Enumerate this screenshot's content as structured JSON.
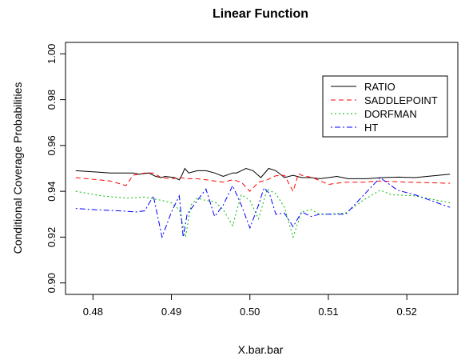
{
  "chart_data": {
    "type": "line",
    "title": "Linear Function",
    "xlabel": "X.bar.bar",
    "ylabel": "Conditional Coverage Probabilities",
    "xlim": [
      0.4765,
      0.5265
    ],
    "ylim": [
      0.895,
      1.005
    ],
    "xticks": [
      0.48,
      0.49,
      0.5,
      0.51,
      0.52
    ],
    "xtick_labels": [
      "0.48",
      "0.49",
      "0.50",
      "0.51",
      "0.52"
    ],
    "yticks": [
      0.9,
      0.92,
      0.94,
      0.96,
      0.98,
      1.0
    ],
    "ytick_labels": [
      "0.90",
      "0.92",
      "0.94",
      "0.96",
      "0.98",
      "1.00"
    ],
    "grid": false,
    "legend_position": "top-right",
    "series": [
      {
        "name": "RATIO",
        "color": "#000000",
        "dash": "solid",
        "x": [
          0.4778,
          0.4822,
          0.4851,
          0.4859,
          0.4871,
          0.488,
          0.4887,
          0.4892,
          0.4904,
          0.491,
          0.4913,
          0.4917,
          0.4922,
          0.4933,
          0.4944,
          0.4955,
          0.4966,
          0.4978,
          0.4983,
          0.4989,
          0.4995,
          0.5004,
          0.5014,
          0.5024,
          0.5033,
          0.5044,
          0.5055,
          0.5066,
          0.5078,
          0.5089,
          0.51,
          0.5111,
          0.5125,
          0.515,
          0.5168,
          0.519,
          0.521,
          0.5255
        ],
        "y": [
          0.949,
          0.948,
          0.948,
          0.9475,
          0.948,
          0.9465,
          0.946,
          0.9465,
          0.946,
          0.945,
          0.9468,
          0.95,
          0.948,
          0.949,
          0.949,
          0.948,
          0.9465,
          0.948,
          0.948,
          0.949,
          0.95,
          0.949,
          0.946,
          0.95,
          0.949,
          0.946,
          0.947,
          0.946,
          0.946,
          0.9455,
          0.946,
          0.9465,
          0.9455,
          0.9455,
          0.946,
          0.9462,
          0.946,
          0.9475
        ]
      },
      {
        "name": "SADDLEPOINT",
        "color": "#ff0000",
        "dash": "dashed",
        "x": [
          0.4778,
          0.4822,
          0.4842,
          0.4851,
          0.4866,
          0.4877,
          0.4887,
          0.49,
          0.4911,
          0.492,
          0.4933,
          0.4944,
          0.4955,
          0.4966,
          0.4978,
          0.4989,
          0.5,
          0.5011,
          0.5022,
          0.5033,
          0.5044,
          0.5055,
          0.5062,
          0.5066,
          0.508,
          0.51,
          0.5122,
          0.5144,
          0.5166,
          0.52,
          0.5255
        ],
        "y": [
          0.946,
          0.9445,
          0.9425,
          0.947,
          0.948,
          0.948,
          0.946,
          0.9455,
          0.946,
          0.9455,
          0.9455,
          0.945,
          0.9445,
          0.944,
          0.945,
          0.944,
          0.94,
          0.944,
          0.945,
          0.9468,
          0.947,
          0.94,
          0.9478,
          0.947,
          0.946,
          0.943,
          0.944,
          0.944,
          0.9445,
          0.944,
          0.9435
        ]
      },
      {
        "name": "DORFMAN",
        "color": "#00bb00",
        "dash": "dotted",
        "x": [
          0.4778,
          0.4811,
          0.4844,
          0.4866,
          0.4888,
          0.49,
          0.491,
          0.4918,
          0.4925,
          0.4933,
          0.4944,
          0.4955,
          0.4966,
          0.4978,
          0.4989,
          0.5,
          0.5011,
          0.5022,
          0.5033,
          0.5044,
          0.5055,
          0.5066,
          0.5078,
          0.5089,
          0.51,
          0.5122,
          0.5144,
          0.5166,
          0.518,
          0.521,
          0.5255
        ],
        "y": [
          0.94,
          0.938,
          0.937,
          0.9375,
          0.936,
          0.935,
          0.932,
          0.92,
          0.934,
          0.937,
          0.936,
          0.9355,
          0.932,
          0.925,
          0.9385,
          0.936,
          0.928,
          0.941,
          0.939,
          0.933,
          0.92,
          0.931,
          0.932,
          0.93,
          0.93,
          0.9305,
          0.936,
          0.9405,
          0.9385,
          0.938,
          0.935
        ]
      },
      {
        "name": "HT",
        "color": "#0000ff",
        "dash": "dotdash",
        "x": [
          0.4778,
          0.48,
          0.4833,
          0.4855,
          0.4866,
          0.4877,
          0.4888,
          0.49,
          0.491,
          0.4915,
          0.492,
          0.4933,
          0.4944,
          0.4955,
          0.4966,
          0.4978,
          0.4989,
          0.5,
          0.5011,
          0.5018,
          0.5025,
          0.5033,
          0.5044,
          0.5055,
          0.5066,
          0.5078,
          0.5089,
          0.51,
          0.5122,
          0.5144,
          0.5166,
          0.5188,
          0.521,
          0.5255
        ],
        "y": [
          0.9325,
          0.932,
          0.9315,
          0.931,
          0.9315,
          0.938,
          0.92,
          0.931,
          0.938,
          0.92,
          0.93,
          0.936,
          0.941,
          0.929,
          0.934,
          0.9425,
          0.934,
          0.924,
          0.934,
          0.9415,
          0.939,
          0.93,
          0.9305,
          0.9245,
          0.931,
          0.929,
          0.93,
          0.93,
          0.93,
          0.938,
          0.946,
          0.9405,
          0.9385,
          0.933
        ]
      }
    ]
  }
}
